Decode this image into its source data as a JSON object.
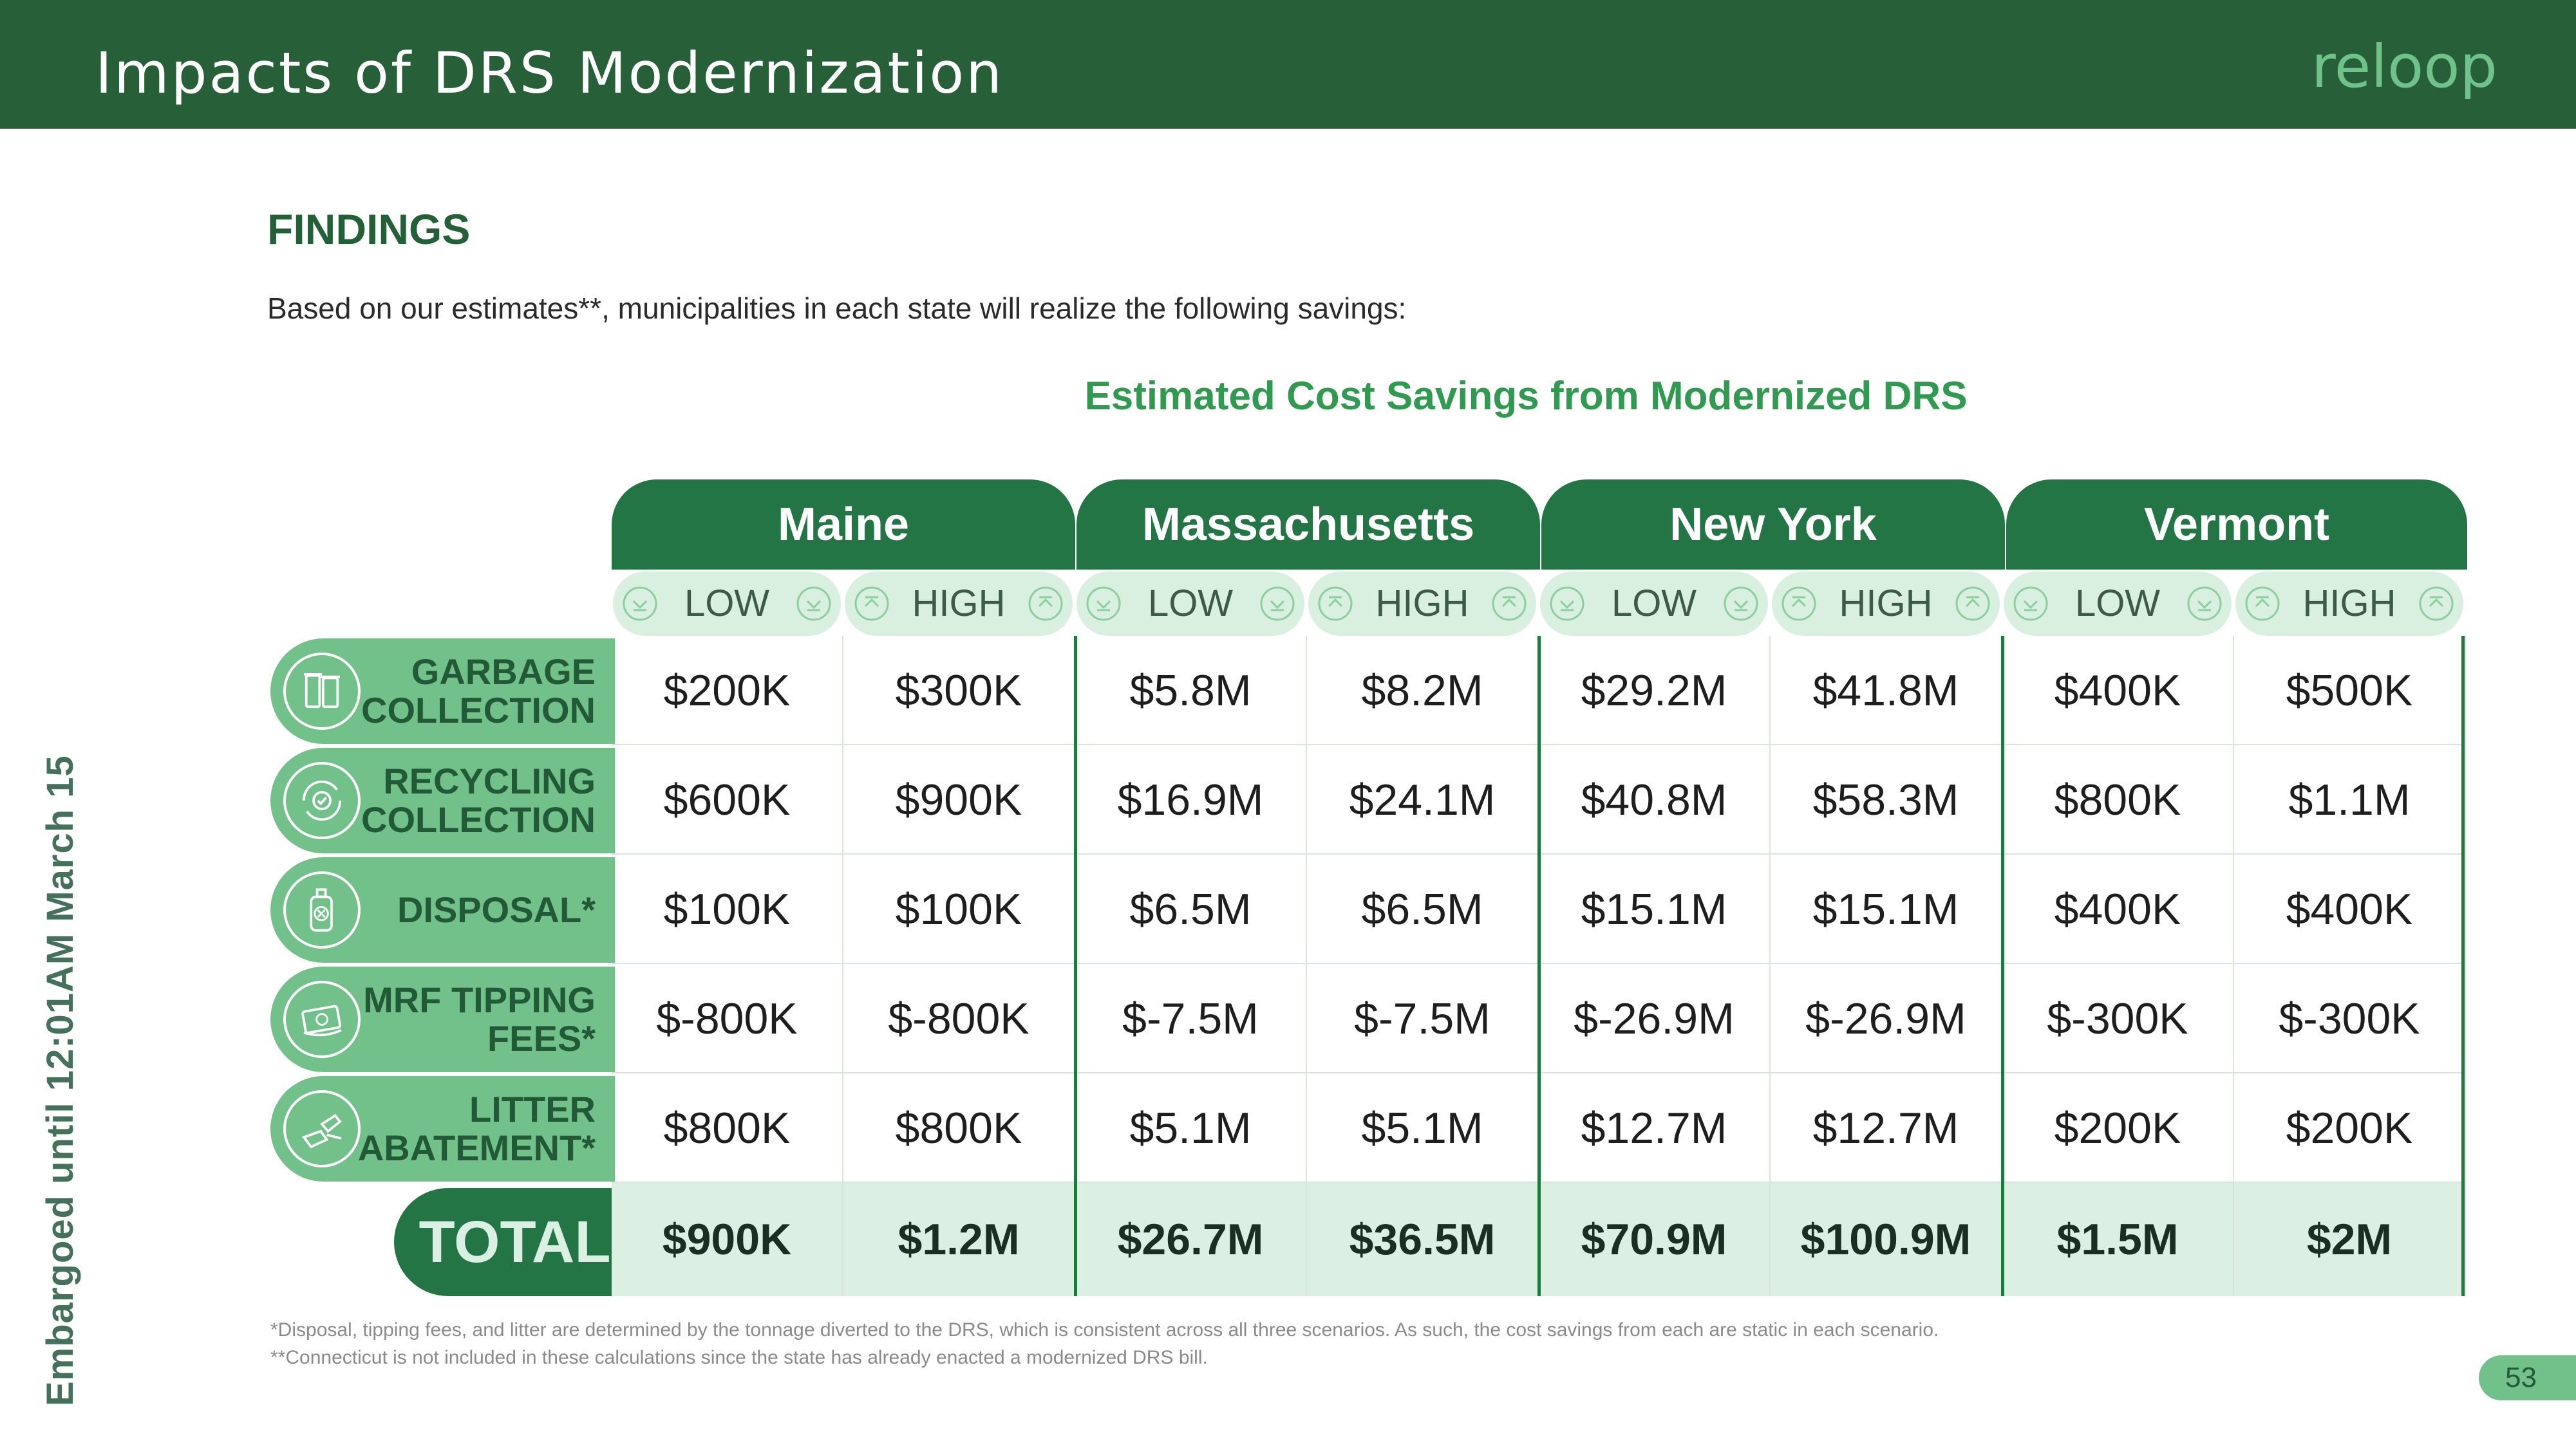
{
  "header": {
    "title": "Impacts of DRS Modernization",
    "logo_text": "reloop"
  },
  "side_note": "Embargoed until 12:01AM March 15",
  "findings": {
    "heading": "FINDINGS",
    "intro": "Based on our estimates**, municipalities in each state will realize the following savings:"
  },
  "table": {
    "title": "Estimated Cost Savings from Modernized DRS",
    "states": [
      "Maine",
      "Massachusetts",
      "New York",
      "Vermont"
    ],
    "sub_labels": [
      "LOW",
      "HIGH"
    ],
    "rows": [
      {
        "label": [
          "GARBAGE",
          "COLLECTION"
        ],
        "icon": "trash-bins-icon",
        "values": [
          "$200K",
          "$300K",
          "$5.8M",
          "$8.2M",
          "$29.2M",
          "$41.8M",
          "$400K",
          "$500K"
        ]
      },
      {
        "label": [
          "RECYCLING",
          "COLLECTION"
        ],
        "icon": "recycle-icon",
        "values": [
          "$600K",
          "$900K",
          "$16.9M",
          "$24.1M",
          "$40.8M",
          "$58.3M",
          "$800K",
          "$1.1M"
        ]
      },
      {
        "label": [
          "DISPOSAL*"
        ],
        "icon": "bottle-disposal-icon",
        "values": [
          "$100K",
          "$100K",
          "$6.5M",
          "$6.5M",
          "$15.1M",
          "$15.1M",
          "$400K",
          "$400K"
        ]
      },
      {
        "label": [
          "MRF TIPPING",
          "FEES*"
        ],
        "icon": "money-icon",
        "values": [
          "$-800K",
          "$-800K",
          "$-7.5M",
          "$-7.5M",
          "$-26.9M",
          "$-26.9M",
          "$-300K",
          "$-300K"
        ]
      },
      {
        "label": [
          "LITTER",
          "ABATEMENT*"
        ],
        "icon": "litter-icon",
        "values": [
          "$800K",
          "$800K",
          "$5.1M",
          "$5.1M",
          "$12.7M",
          "$12.7M",
          "$200K",
          "$200K"
        ]
      }
    ],
    "total": {
      "label": "TOTAL",
      "values": [
        "$900K",
        "$1.2M",
        "$26.7M",
        "$36.5M",
        "$70.9M",
        "$100.9M",
        "$1.5M",
        "$2M"
      ]
    }
  },
  "footnotes": [
    "*Disposal, tipping fees, and litter are determined by the tonnage diverted to the DRS, which is consistent across all three scenarios. As such, the cost savings from each are static in each scenario.",
    "**Connecticut is not included in these calculations since the state has already enacted a modernized DRS bill."
  ],
  "page_number": "53",
  "colors": {
    "brand_dark": "#265f38",
    "brand_mid": "#237545",
    "brand_light": "#72c18a",
    "accent_title": "#2f9a50"
  }
}
